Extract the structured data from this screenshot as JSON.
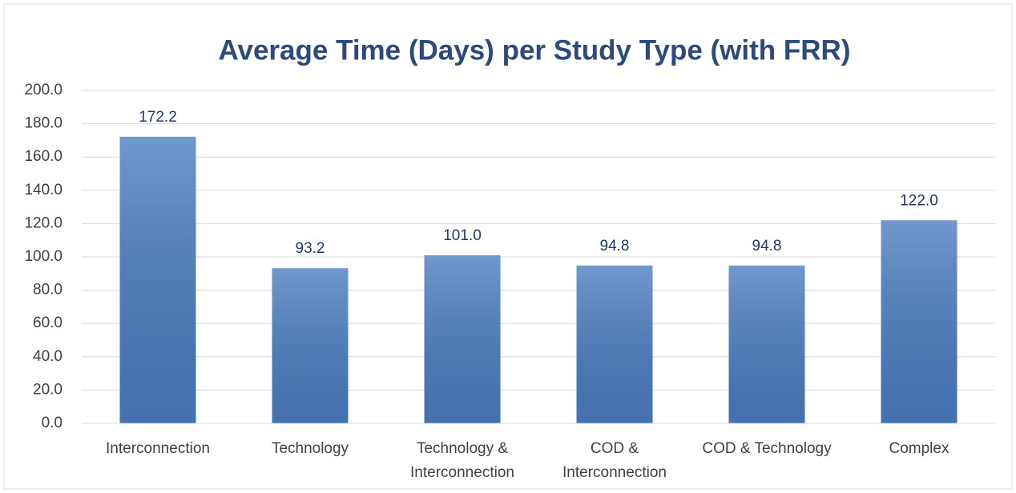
{
  "chart_data": {
    "type": "bar",
    "title": "Average Time (Days) per Study Type (with FRR)",
    "categories": [
      "Interconnection",
      "Technology",
      "Technology & Interconnection",
      "COD & Interconnection",
      "COD & Technology",
      "Complex"
    ],
    "values": [
      172.2,
      93.2,
      101,
      94.8,
      94.8,
      122
    ],
    "value_labels": [
      "172.2",
      "93.2",
      "101.0",
      "94.8",
      "94.8",
      "122.0"
    ],
    "color": "#4a7cc0",
    "ylim": [
      0,
      200
    ],
    "yticks": [
      {
        "value": 0,
        "label": "0.0"
      },
      {
        "value": 20,
        "label": "20.0"
      },
      {
        "value": 40,
        "label": "40.0"
      },
      {
        "value": 60,
        "label": "60.0"
      },
      {
        "value": 80,
        "label": "80.0"
      },
      {
        "value": 100,
        "label": "100.0"
      },
      {
        "value": 120,
        "label": "120.0"
      },
      {
        "value": 140,
        "label": "140.0"
      },
      {
        "value": 160,
        "label": "160.0"
      },
      {
        "value": 180,
        "label": "180.0"
      },
      {
        "value": 200,
        "label": "200.0"
      }
    ],
    "grid": true
  }
}
